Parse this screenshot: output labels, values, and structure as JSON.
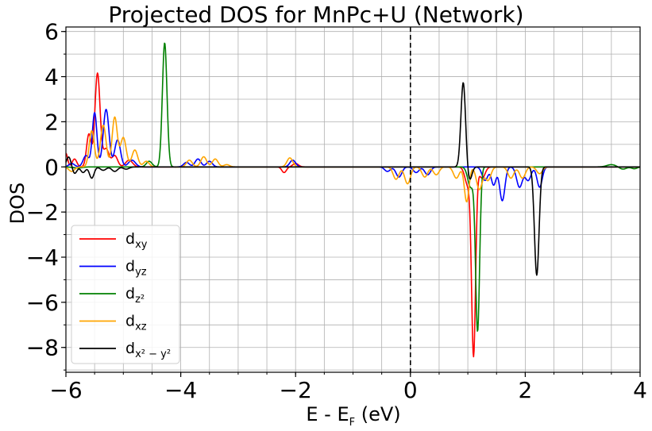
{
  "chart_data": {
    "type": "line",
    "title": "Projected DOS for MnPc+U (Network)",
    "xlabel": "E - E",
    "xlabel_sub": "F",
    "xlabel_unit": " (eV)",
    "ylabel": "DOS",
    "xlim": [
      -6,
      4
    ],
    "ylim": [
      -9.1,
      6.2
    ],
    "xticks": [
      -6,
      -4,
      -2,
      0,
      2,
      4
    ],
    "xtick_labels": [
      "−6",
      "−4",
      "−2",
      "0",
      "2",
      "4"
    ],
    "yticks": [
      -8,
      -6,
      -4,
      -2,
      0,
      2,
      4,
      6
    ],
    "ytick_labels": [
      "−8",
      "−6",
      "−4",
      "−2",
      "0",
      "2",
      "4",
      "6"
    ],
    "minor_x_step": 0.5,
    "minor_y_step": 1,
    "grid": true,
    "fermi_level": 0,
    "legend_position": "lower-left",
    "series": [
      {
        "name": "d",
        "name_sub": "xy",
        "color": "#ff0000",
        "peaks": [
          [
            -6.0,
            0.6,
            0.03
          ],
          [
            -5.85,
            0.35,
            0.04
          ],
          [
            -5.6,
            1.45,
            0.04
          ],
          [
            -5.45,
            4.15,
            0.045
          ],
          [
            -5.3,
            0.8,
            0.05
          ],
          [
            -5.15,
            0.5,
            0.05
          ],
          [
            -4.9,
            0.3,
            0.06
          ],
          [
            -2.2,
            -0.25,
            0.04
          ],
          [
            -2.0,
            0.15,
            0.05
          ],
          [
            1.1,
            -8.3,
            0.035
          ],
          [
            1.0,
            -0.8,
            0.05
          ],
          [
            1.25,
            -0.5,
            0.05
          ]
        ]
      },
      {
        "name": "d",
        "name_sub": "yz",
        "color": "#0000ff",
        "peaks": [
          [
            -5.9,
            0.15,
            0.05
          ],
          [
            -5.65,
            0.5,
            0.05
          ],
          [
            -5.5,
            2.4,
            0.04
          ],
          [
            -5.3,
            2.55,
            0.05
          ],
          [
            -5.1,
            1.2,
            0.05
          ],
          [
            -4.85,
            0.3,
            0.06
          ],
          [
            -3.9,
            0.2,
            0.05
          ],
          [
            -3.7,
            0.35,
            0.05
          ],
          [
            -3.5,
            0.25,
            0.05
          ],
          [
            -2.05,
            0.3,
            0.05
          ],
          [
            -0.4,
            -0.2,
            0.05
          ],
          [
            -0.2,
            -0.45,
            0.05
          ],
          [
            0.1,
            -0.25,
            0.05
          ],
          [
            0.3,
            -0.35,
            0.05
          ],
          [
            1.3,
            -0.6,
            0.05
          ],
          [
            1.45,
            -0.8,
            0.04
          ],
          [
            1.6,
            -1.5,
            0.045
          ],
          [
            1.9,
            -0.9,
            0.05
          ],
          [
            2.05,
            -0.6,
            0.05
          ],
          [
            2.25,
            -0.9,
            0.045
          ]
        ]
      },
      {
        "name": "d",
        "name_sub": "z²",
        "color": "#008000",
        "peaks": [
          [
            -5.8,
            -0.05,
            0.08
          ],
          [
            -4.55,
            0.25,
            0.05
          ],
          [
            -4.28,
            5.5,
            0.04
          ],
          [
            1.17,
            -7.25,
            0.035
          ],
          [
            1.05,
            -0.9,
            0.05
          ],
          [
            3.5,
            0.1,
            0.08
          ],
          [
            3.7,
            -0.1,
            0.06
          ],
          [
            3.9,
            -0.08,
            0.05
          ]
        ]
      },
      {
        "name": "d",
        "name_sub": "xz",
        "color": "#ffa500",
        "peaks": [
          [
            -5.9,
            -0.2,
            0.05
          ],
          [
            -5.55,
            1.6,
            0.045
          ],
          [
            -5.35,
            1.85,
            0.05
          ],
          [
            -5.15,
            2.2,
            0.045
          ],
          [
            -5.0,
            1.3,
            0.05
          ],
          [
            -4.8,
            0.75,
            0.05
          ],
          [
            -4.6,
            0.25,
            0.05
          ],
          [
            -3.85,
            0.3,
            0.05
          ],
          [
            -3.6,
            0.45,
            0.05
          ],
          [
            -3.4,
            0.35,
            0.05
          ],
          [
            -3.2,
            0.1,
            0.05
          ],
          [
            -2.1,
            0.4,
            0.05
          ],
          [
            -0.25,
            -0.55,
            0.05
          ],
          [
            -0.05,
            -0.75,
            0.05
          ],
          [
            0.25,
            -0.45,
            0.05
          ],
          [
            0.45,
            -0.35,
            0.05
          ],
          [
            0.8,
            -0.5,
            0.05
          ],
          [
            0.98,
            -1.55,
            0.04
          ],
          [
            1.2,
            -1.0,
            0.05
          ],
          [
            1.35,
            -0.6,
            0.05
          ],
          [
            1.75,
            -0.5,
            0.05
          ],
          [
            1.95,
            -0.5,
            0.05
          ],
          [
            2.25,
            -0.3,
            0.05
          ]
        ]
      },
      {
        "name": "d",
        "name_sub": "x² − y²",
        "color": "#000000",
        "peaks": [
          [
            -5.95,
            0.45,
            0.04
          ],
          [
            -5.85,
            -0.3,
            0.04
          ],
          [
            -5.7,
            -0.25,
            0.04
          ],
          [
            -5.55,
            -0.5,
            0.04
          ],
          [
            -5.35,
            -0.15,
            0.05
          ],
          [
            -5.15,
            -0.2,
            0.05
          ],
          [
            -4.95,
            -0.1,
            0.05
          ],
          [
            0.92,
            3.75,
            0.04
          ],
          [
            1.03,
            -0.6,
            0.04
          ],
          [
            2.2,
            -4.8,
            0.04
          ]
        ]
      }
    ]
  }
}
